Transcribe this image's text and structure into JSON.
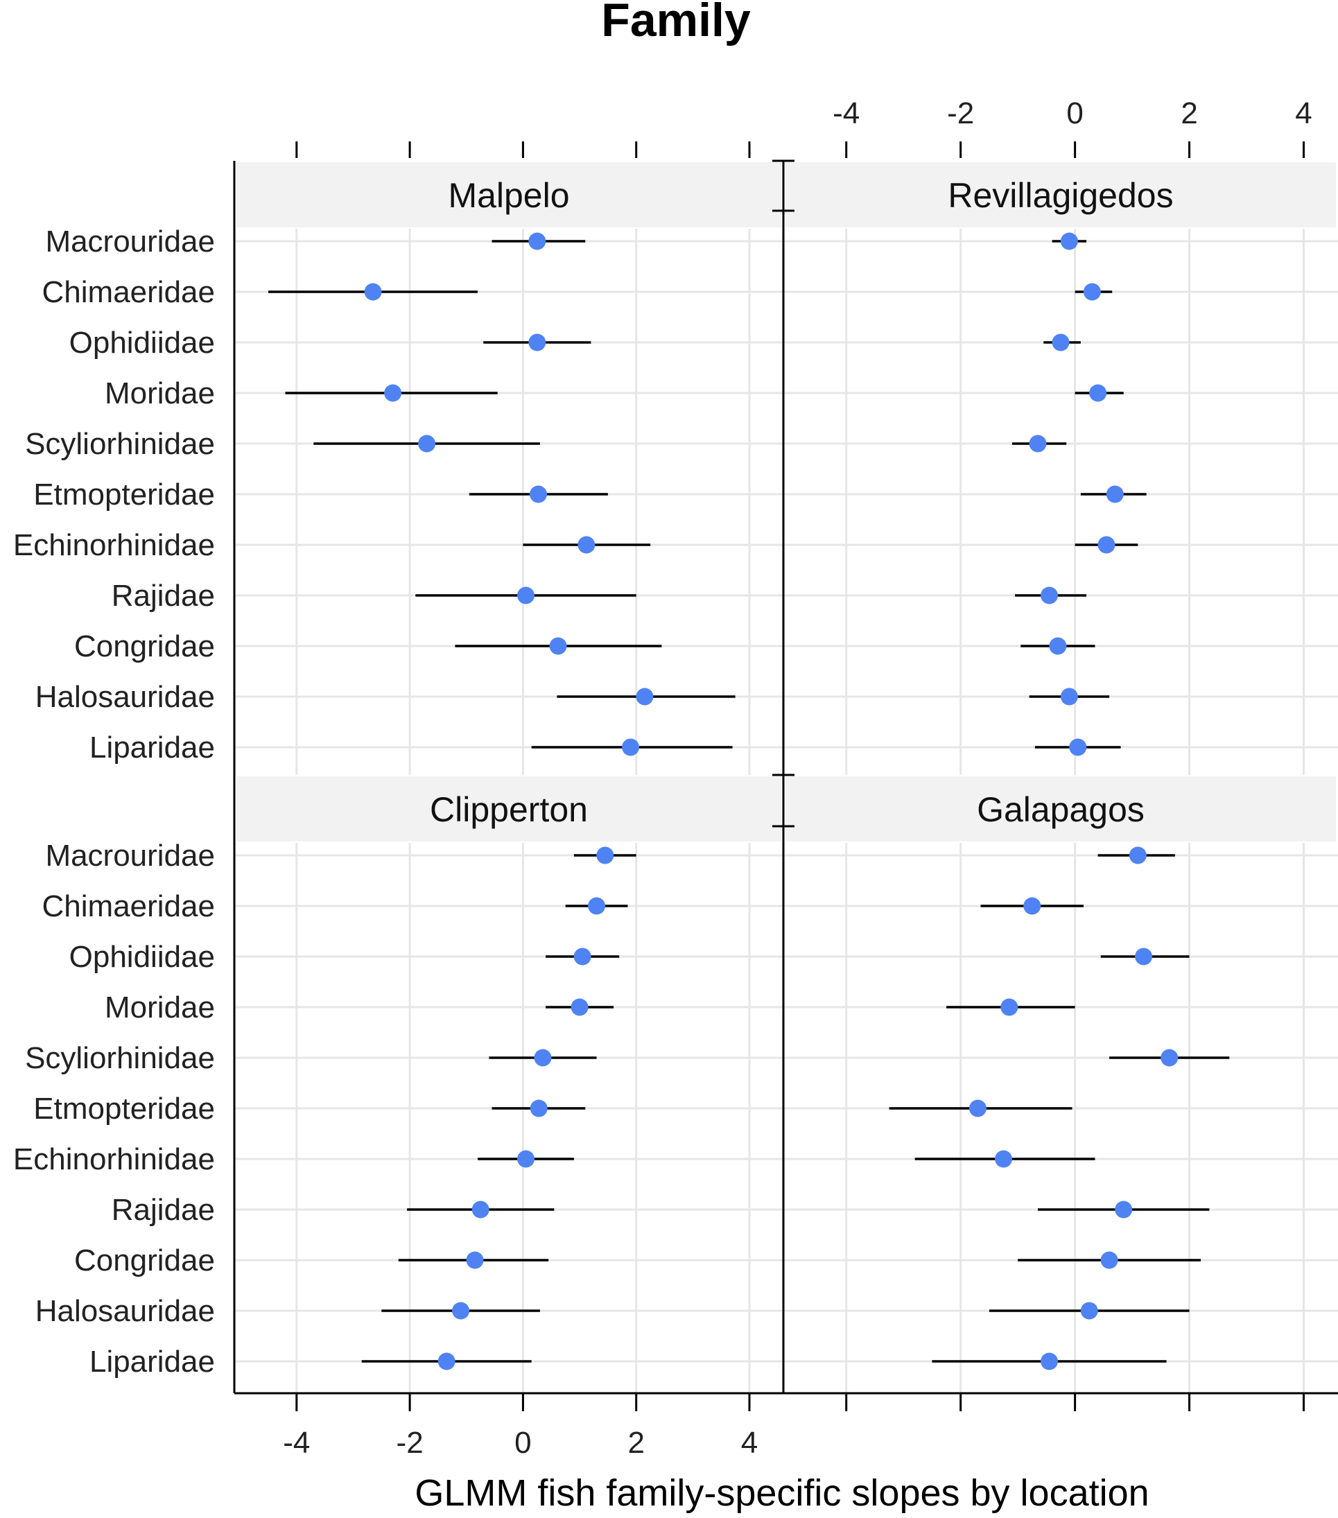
{
  "chart_data": {
    "type": "scatter",
    "title": "Family",
    "xlabel": "GLMM fish family-specific slopes by location",
    "ylabel": "",
    "xlim": [
      -5.1,
      4.6
    ],
    "xticks": [
      -4,
      -2,
      0,
      2,
      4
    ],
    "xtick_labels": [
      "-4",
      "-2",
      "0",
      "2",
      "4"
    ],
    "grid": true,
    "colors": {
      "point": "#4f83f4",
      "whisker": "#000000",
      "strip": "#f2f2f2",
      "grid": "#e6e6e6",
      "frame": "#000000"
    },
    "categories": [
      "Macrouridae",
      "Chimaeridae",
      "Ophidiidae",
      "Moridae",
      "Scyliorhinidae",
      "Etmopteridae",
      "Echinorhinidae",
      "Rajidae",
      "Congridae",
      "Halosauridae",
      "Liparidae"
    ],
    "panels": [
      {
        "name": "Malpelo",
        "points": [
          {
            "value": 0.25,
            "low": -0.55,
            "high": 1.1
          },
          {
            "value": -2.65,
            "low": -4.5,
            "high": -0.8
          },
          {
            "value": 0.25,
            "low": -0.7,
            "high": 1.2
          },
          {
            "value": -2.3,
            "low": -4.2,
            "high": -0.45
          },
          {
            "value": -1.7,
            "low": -3.7,
            "high": 0.3
          },
          {
            "value": 0.27,
            "low": -0.95,
            "high": 1.5
          },
          {
            "value": 1.12,
            "low": 0.0,
            "high": 2.25
          },
          {
            "value": 0.05,
            "low": -1.9,
            "high": 2.0
          },
          {
            "value": 0.62,
            "low": -1.2,
            "high": 2.45
          },
          {
            "value": 2.15,
            "low": 0.6,
            "high": 3.75
          },
          {
            "value": 1.9,
            "low": 0.15,
            "high": 3.7
          }
        ]
      },
      {
        "name": "Revillagigedos",
        "points": [
          {
            "value": -0.1,
            "low": -0.4,
            "high": 0.2
          },
          {
            "value": 0.3,
            "low": 0.0,
            "high": 0.65
          },
          {
            "value": -0.25,
            "low": -0.55,
            "high": 0.1
          },
          {
            "value": 0.4,
            "low": 0.0,
            "high": 0.85
          },
          {
            "value": -0.65,
            "low": -1.1,
            "high": -0.15
          },
          {
            "value": 0.7,
            "low": 0.1,
            "high": 1.25
          },
          {
            "value": 0.55,
            "low": 0.0,
            "high": 1.1
          },
          {
            "value": -0.45,
            "low": -1.05,
            "high": 0.2
          },
          {
            "value": -0.3,
            "low": -0.95,
            "high": 0.35
          },
          {
            "value": -0.1,
            "low": -0.8,
            "high": 0.6
          },
          {
            "value": 0.05,
            "low": -0.7,
            "high": 0.8
          }
        ]
      },
      {
        "name": "Clipperton",
        "points": [
          {
            "value": 1.45,
            "low": 0.9,
            "high": 2.0
          },
          {
            "value": 1.3,
            "low": 0.75,
            "high": 1.85
          },
          {
            "value": 1.05,
            "low": 0.4,
            "high": 1.7
          },
          {
            "value": 1.0,
            "low": 0.4,
            "high": 1.6
          },
          {
            "value": 0.35,
            "low": -0.6,
            "high": 1.3
          },
          {
            "value": 0.28,
            "low": -0.55,
            "high": 1.1
          },
          {
            "value": 0.05,
            "low": -0.8,
            "high": 0.9
          },
          {
            "value": -0.75,
            "low": -2.05,
            "high": 0.55
          },
          {
            "value": -0.85,
            "low": -2.2,
            "high": 0.45
          },
          {
            "value": -1.1,
            "low": -2.5,
            "high": 0.3
          },
          {
            "value": -1.35,
            "low": -2.85,
            "high": 0.15
          }
        ]
      },
      {
        "name": "Galapagos",
        "points": [
          {
            "value": 1.1,
            "low": 0.4,
            "high": 1.75
          },
          {
            "value": -0.75,
            "low": -1.65,
            "high": 0.15
          },
          {
            "value": 1.2,
            "low": 0.45,
            "high": 2.0
          },
          {
            "value": -1.15,
            "low": -2.25,
            "high": 0.0
          },
          {
            "value": 1.65,
            "low": 0.6,
            "high": 2.7
          },
          {
            "value": -1.7,
            "low": -3.25,
            "high": -0.05
          },
          {
            "value": -1.25,
            "low": -2.8,
            "high": 0.35
          },
          {
            "value": 0.85,
            "low": -0.65,
            "high": 2.35
          },
          {
            "value": 0.6,
            "low": -1.0,
            "high": 2.2
          },
          {
            "value": 0.25,
            "low": -1.5,
            "high": 2.0
          },
          {
            "value": -0.45,
            "low": -2.5,
            "high": 1.6
          }
        ]
      }
    ]
  }
}
